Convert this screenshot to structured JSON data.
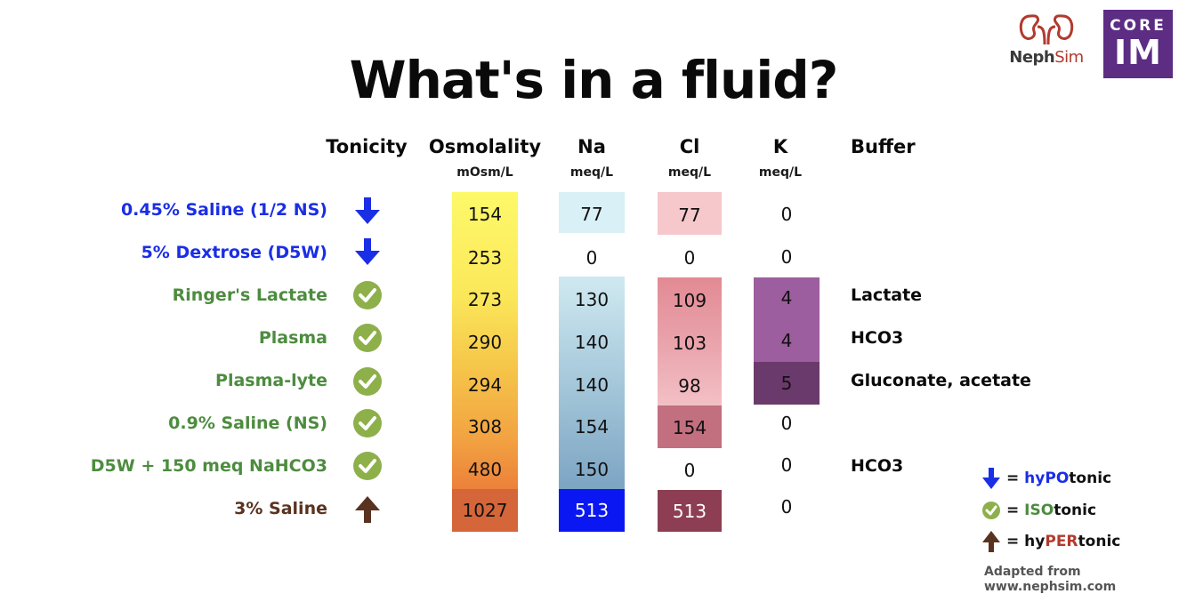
{
  "title": "What's in a fluid?",
  "logos": {
    "nephsim_bold": "Neph",
    "nephsim_light": "Sim",
    "core": "CORE",
    "im": "IM"
  },
  "headers": {
    "tonicity": "Tonicity",
    "osmolality": "Osmolality",
    "osmolality_unit": "mOsm/L",
    "na": "Na",
    "na_unit": "meq/L",
    "cl": "Cl",
    "cl_unit": "meq/L",
    "k": "K",
    "k_unit": "meq/L",
    "buffer": "Buffer"
  },
  "rows": [
    {
      "label": "0.45% Saline (1/2 NS)",
      "tonicity": "hypotonic",
      "osmolality": "154",
      "na": "77",
      "cl": "77",
      "k": "0",
      "buffer": ""
    },
    {
      "label": "5% Dextrose (D5W)",
      "tonicity": "hypotonic",
      "osmolality": "253",
      "na": "0",
      "cl": "0",
      "k": "0",
      "buffer": ""
    },
    {
      "label": "Ringer's Lactate",
      "tonicity": "isotonic",
      "osmolality": "273",
      "na": "130",
      "cl": "109",
      "k": "4",
      "buffer": "Lactate"
    },
    {
      "label": "Plasma",
      "tonicity": "isotonic",
      "osmolality": "290",
      "na": "140",
      "cl": "103",
      "k": "4",
      "buffer": "HCO3"
    },
    {
      "label": "Plasma-lyte",
      "tonicity": "isotonic",
      "osmolality": "294",
      "na": "140",
      "cl": "98",
      "k": "5",
      "buffer": "Gluconate, acetate"
    },
    {
      "label": "0.9% Saline (NS)",
      "tonicity": "isotonic",
      "osmolality": "308",
      "na": "154",
      "cl": "154",
      "k": "0",
      "buffer": ""
    },
    {
      "label": "D5W + 150 meq NaHCO3",
      "tonicity": "isotonic",
      "osmolality": "480",
      "na": "150",
      "cl": "0",
      "k": "0",
      "buffer": "HCO3"
    },
    {
      "label": "3% Saline",
      "tonicity": "hypertonic",
      "osmolality": "1027",
      "na": "513",
      "cl": "513",
      "k": "0",
      "buffer": ""
    }
  ],
  "legend": {
    "hypo_prefix": "hy",
    "hypo_em": "PO",
    "hypo_suffix": "tonic",
    "iso_em": "ISO",
    "iso_suffix": "tonic",
    "hyper_prefix": "hy",
    "hyper_em": "PER",
    "hyper_suffix": "tonic",
    "equals": "="
  },
  "credit": {
    "line1": "Adapted from",
    "line2": "www.nephsim.com"
  },
  "colors": {
    "hypo": "#1a2ee6",
    "iso": "#4d8c3f",
    "hyper": "#5a3320",
    "core_im_bg": "#5c2d83"
  },
  "icons": {
    "hypotonic": "down-arrow-icon",
    "isotonic": "check-circle-icon",
    "hypertonic": "up-arrow-icon"
  }
}
